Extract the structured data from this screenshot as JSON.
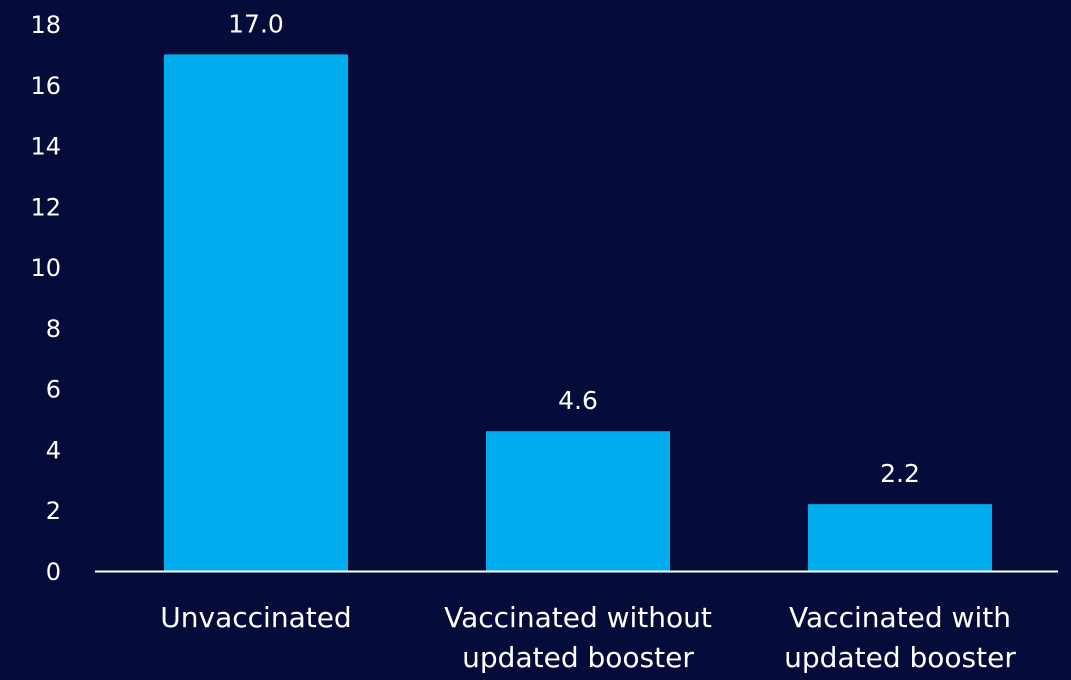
{
  "chart_data": {
    "type": "bar",
    "categories": [
      [
        "Unvaccinated"
      ],
      [
        "Vaccinated without",
        "updated booster"
      ],
      [
        "Vaccinated with",
        "updated booster"
      ]
    ],
    "values": [
      17.0,
      4.6,
      2.2
    ],
    "data_labels": [
      "17.0",
      "4.6",
      "2.2"
    ],
    "ylim": [
      0,
      18
    ],
    "yticks": [
      "0",
      "2",
      "4",
      "6",
      "8",
      "10",
      "12",
      "14",
      "16",
      "18"
    ],
    "title": "",
    "xlabel": "",
    "ylabel": "",
    "grid": false,
    "colors": {
      "background": "#050c3a",
      "bar": "#00aeef",
      "axis": "#ffffff",
      "text": "#ffffff"
    }
  }
}
